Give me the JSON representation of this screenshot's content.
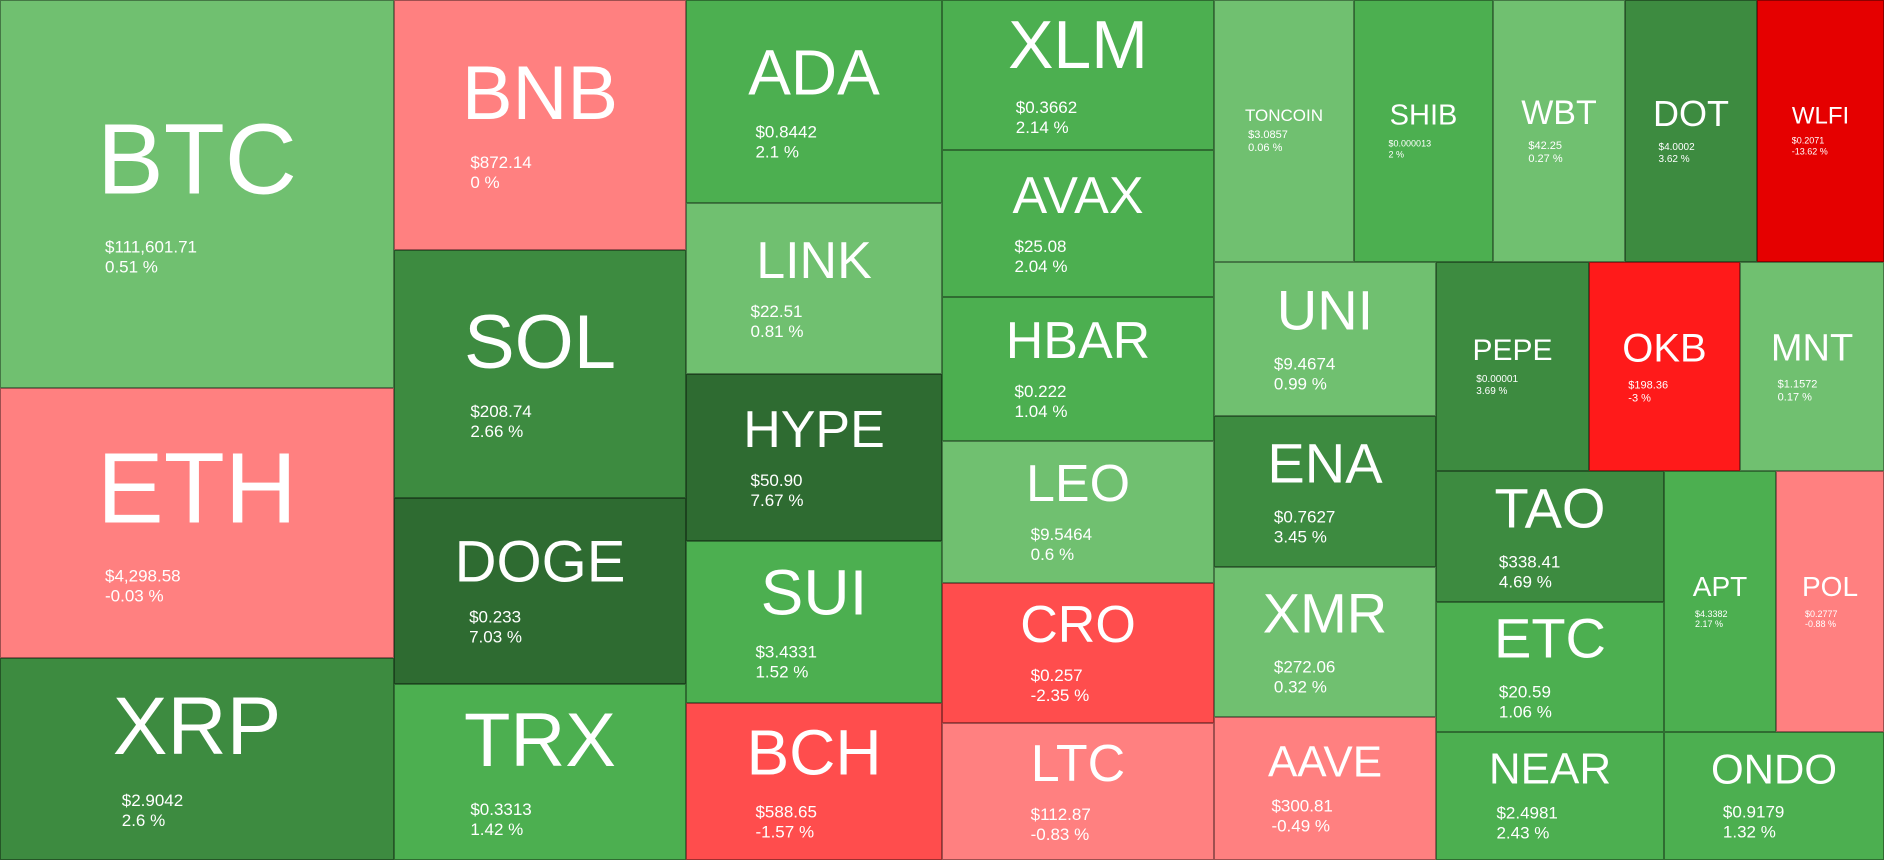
{
  "chart_data": {
    "type": "treemap",
    "colors": {
      "strong_down": "#e50000",
      "down": "#ff1a1a",
      "mid_down": "#ff4d4d",
      "light_down": "#ff8080",
      "light_up": "#70c070",
      "up": "#4caf50",
      "mid_up": "#3d8b40",
      "strong_up": "#2e6b31"
    },
    "items": [
      {
        "symbol": "BTC",
        "price": "$111,601.71",
        "change": "0.51 %",
        "color": "light_up"
      },
      {
        "symbol": "ETH",
        "price": "$4,298.58",
        "change": "-0.03 %",
        "color": "light_down"
      },
      {
        "symbol": "XRP",
        "price": "$2.9042",
        "change": "2.6 %",
        "color": "mid_up"
      },
      {
        "symbol": "BNB",
        "price": "$872.14",
        "change": "0 %",
        "color": "light_down"
      },
      {
        "symbol": "SOL",
        "price": "$208.74",
        "change": "2.66 %",
        "color": "mid_up"
      },
      {
        "symbol": "DOGE",
        "price": "$0.233",
        "change": "7.03 %",
        "color": "strong_up"
      },
      {
        "symbol": "TRX",
        "price": "$0.3313",
        "change": "1.42 %",
        "color": "up"
      },
      {
        "symbol": "ADA",
        "price": "$0.8442",
        "change": "2.1 %",
        "color": "up"
      },
      {
        "symbol": "LINK",
        "price": "$22.51",
        "change": "0.81 %",
        "color": "light_up"
      },
      {
        "symbol": "HYPE",
        "price": "$50.90",
        "change": "7.67 %",
        "color": "strong_up"
      },
      {
        "symbol": "SUI",
        "price": "$3.4331",
        "change": "1.52 %",
        "color": "up"
      },
      {
        "symbol": "BCH",
        "price": "$588.65",
        "change": "-1.57 %",
        "color": "mid_down"
      },
      {
        "symbol": "XLM",
        "price": "$0.3662",
        "change": "2.14 %",
        "color": "up"
      },
      {
        "symbol": "AVAX",
        "price": "$25.08",
        "change": "2.04 %",
        "color": "up"
      },
      {
        "symbol": "HBAR",
        "price": "$0.222",
        "change": "1.04 %",
        "color": "up"
      },
      {
        "symbol": "LEO",
        "price": "$9.5464",
        "change": "0.6 %",
        "color": "light_up"
      },
      {
        "symbol": "CRO",
        "price": "$0.257",
        "change": "-2.35 %",
        "color": "mid_down"
      },
      {
        "symbol": "LTC",
        "price": "$112.87",
        "change": "-0.83 %",
        "color": "light_down"
      },
      {
        "symbol": "TONCOIN",
        "price": "$3.0857",
        "change": "0.06 %",
        "color": "light_up"
      },
      {
        "symbol": "SHIB",
        "price": "$0.000013",
        "change": "2 %",
        "color": "up"
      },
      {
        "symbol": "WBT",
        "price": "$42.25",
        "change": "0.27 %",
        "color": "light_up"
      },
      {
        "symbol": "DOT",
        "price": "$4.0002",
        "change": "3.62 %",
        "color": "mid_up"
      },
      {
        "symbol": "WLFI",
        "price": "$0.2071",
        "change": "-13.62 %",
        "color": "strong_down"
      },
      {
        "symbol": "UNI",
        "price": "$9.4674",
        "change": "0.99 %",
        "color": "light_up"
      },
      {
        "symbol": "ENA",
        "price": "$0.7627",
        "change": "3.45 %",
        "color": "mid_up"
      },
      {
        "symbol": "XMR",
        "price": "$272.06",
        "change": "0.32 %",
        "color": "light_up"
      },
      {
        "symbol": "AAVE",
        "price": "$300.81",
        "change": "-0.49 %",
        "color": "light_down"
      },
      {
        "symbol": "PEPE",
        "price": "$0.00001",
        "change": "3.69 %",
        "color": "mid_up"
      },
      {
        "symbol": "OKB",
        "price": "$198.36",
        "change": "-3 %",
        "color": "down"
      },
      {
        "symbol": "MNT",
        "price": "$1.1572",
        "change": "0.17 %",
        "color": "light_up"
      },
      {
        "symbol": "TAO",
        "price": "$338.41",
        "change": "4.69 %",
        "color": "mid_up"
      },
      {
        "symbol": "ETC",
        "price": "$20.59",
        "change": "1.06 %",
        "color": "up"
      },
      {
        "symbol": "NEAR",
        "price": "$2.4981",
        "change": "2.43 %",
        "color": "up"
      },
      {
        "symbol": "APT",
        "price": "$4.3382",
        "change": "2.17 %",
        "color": "up"
      },
      {
        "symbol": "POL",
        "price": "$0.2777",
        "change": "-0.88 %",
        "color": "light_down"
      },
      {
        "symbol": "ONDO",
        "price": "$0.9179",
        "change": "1.32 %",
        "color": "up"
      }
    ]
  }
}
